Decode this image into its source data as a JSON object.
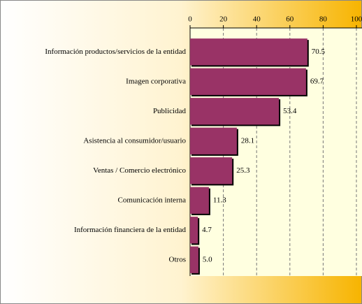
{
  "chart_data": {
    "type": "barh",
    "categories": [
      "Información productos/servicios de la entidad",
      "Imagen corporativa",
      "Publicidad",
      "Asistencia al consumidor/usuario",
      "Ventas / Comercio electrónico",
      "Comunicación interna",
      "Información financiera de la entidad",
      "Otros"
    ],
    "values": [
      70.5,
      69.7,
      53.4,
      28.1,
      25.3,
      11.3,
      4.7,
      5.0
    ],
    "value_labels": [
      "70.5",
      "69.7",
      "53.4",
      "28.1",
      "25.3",
      "11.3",
      "4.7",
      "5.0"
    ],
    "color": "#993366",
    "xlim": [
      0,
      100
    ],
    "xticks": [
      0,
      20,
      40,
      60,
      80,
      100
    ],
    "grid": true
  }
}
